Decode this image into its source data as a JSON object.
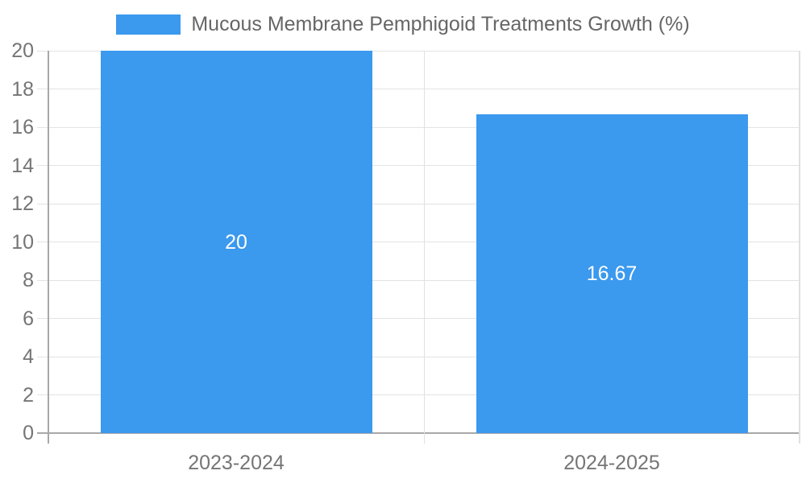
{
  "chart_data": {
    "type": "bar",
    "title": "Mucous Membrane Pemphigoid Treatments Growth (%)",
    "categories": [
      "2023-2024",
      "2024-2025"
    ],
    "values": [
      20,
      16.67
    ],
    "value_labels": [
      "20",
      "16.67"
    ],
    "xlabel": "",
    "ylabel": "",
    "ylim": [
      0,
      20
    ],
    "ytick_step": 2,
    "ytick_labels": [
      "0",
      "2",
      "4",
      "6",
      "8",
      "10",
      "12",
      "14",
      "16",
      "18",
      "20"
    ],
    "legend_position": "top",
    "grid": true,
    "colors": {
      "bar": "#3b99ee",
      "value_label": "#ffffff",
      "axis_text": "#757575",
      "legend_text": "#666666",
      "gridline": "#e3e3e3",
      "axis_line": "#a8a8a8",
      "category_border": "#e0e0e0"
    }
  }
}
